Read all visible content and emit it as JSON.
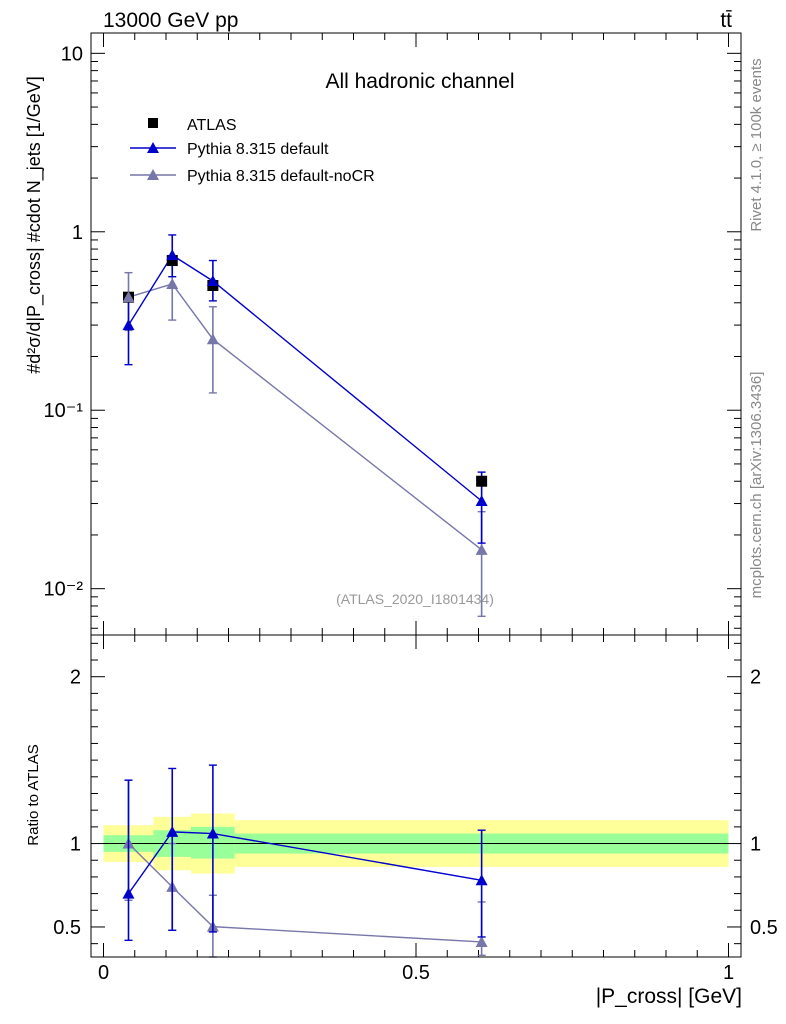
{
  "header": {
    "energy_label": "13000 GeV pp",
    "process_label": "tt̄"
  },
  "side_labels": {
    "rivet": "Rivet 4.1.0, ≥ 100k events",
    "mcplots": "mcplots.cern.ch [arXiv:1306.3436]"
  },
  "chart_data": [
    {
      "type": "line",
      "title": "All hadronic channel",
      "analysis_id": "(ATLAS_2020_I1801434)",
      "yscale": "log",
      "ylim": [
        0.0055,
        13
      ],
      "xlim": [
        -0.02,
        1.02
      ],
      "ylabel": "#d²σ/d|P_cross| #cdot N_jets  [1/GeV]",
      "y_tick_labels": [
        "10⁻²",
        "10⁻¹",
        "1",
        "10"
      ],
      "legend_position": "top-left",
      "series": [
        {
          "name": "ATLAS",
          "color": "#000000",
          "marker": "square",
          "x": [
            0.04,
            0.11,
            0.175,
            0.605
          ],
          "y": [
            0.43,
            0.69,
            0.5,
            0.04
          ]
        },
        {
          "name": "Pythia 8.315 default",
          "color": "#0000cc",
          "marker": "triangle",
          "x": [
            0.04,
            0.11,
            0.175,
            0.605
          ],
          "y": [
            0.3,
            0.74,
            0.53,
            0.031
          ],
          "err_low": [
            0.18,
            0.56,
            0.41,
            0.018
          ],
          "err_high": [
            0.42,
            0.96,
            0.69,
            0.045
          ]
        },
        {
          "name": "Pythia 8.315 default-noCR",
          "color": "#7777aa",
          "marker": "triangle",
          "x": [
            0.04,
            0.11,
            0.175,
            0.605
          ],
          "y": [
            0.43,
            0.51,
            0.25,
            0.0165
          ],
          "err_low": [
            0.28,
            0.32,
            0.125,
            0.007
          ],
          "err_high": [
            0.59,
            0.69,
            0.38,
            0.027
          ]
        }
      ]
    },
    {
      "type": "line",
      "ylabel": "Ratio to ATLAS",
      "xlabel": "|P_cross| [GeV]",
      "xlim": [
        -0.02,
        1.02
      ],
      "ylim": [
        0.32,
        2.25
      ],
      "x_tick_labels": [
        "0",
        "0.5",
        "1"
      ],
      "y_tick_labels": [
        "0.5",
        "1",
        "2"
      ],
      "reference_line": 1.0,
      "bands": {
        "bin_edges": [
          0.0,
          0.08,
          0.14,
          0.21,
          1.0
        ],
        "inner": [
          [
            0.95,
            1.05
          ],
          [
            0.92,
            1.08
          ],
          [
            0.91,
            1.1
          ],
          [
            0.94,
            1.06
          ]
        ],
        "outer": [
          [
            0.89,
            1.11
          ],
          [
            0.84,
            1.16
          ],
          [
            0.82,
            1.18
          ],
          [
            0.86,
            1.14
          ]
        ],
        "inner_color": "#99ff99",
        "outer_color": "#ffff99"
      },
      "series": [
        {
          "name": "Pythia 8.315 default",
          "color": "#0000cc",
          "x": [
            0.04,
            0.11,
            0.175,
            0.605
          ],
          "y": [
            0.7,
            1.07,
            1.06,
            0.78
          ],
          "err_low": [
            0.42,
            0.48,
            0.47,
            0.44
          ],
          "err_high": [
            1.38,
            1.45,
            1.47,
            1.08
          ]
        },
        {
          "name": "Pythia 8.315 default-noCR",
          "color": "#7777aa",
          "x": [
            0.04,
            0.11,
            0.175,
            0.605
          ],
          "y": [
            1.0,
            0.74,
            0.502,
            0.41
          ],
          "err_low": [
            0.66,
            0.48,
            0.32,
            0.33
          ],
          "err_high": [
            1.38,
            1.0,
            0.69,
            0.65
          ]
        }
      ]
    }
  ]
}
